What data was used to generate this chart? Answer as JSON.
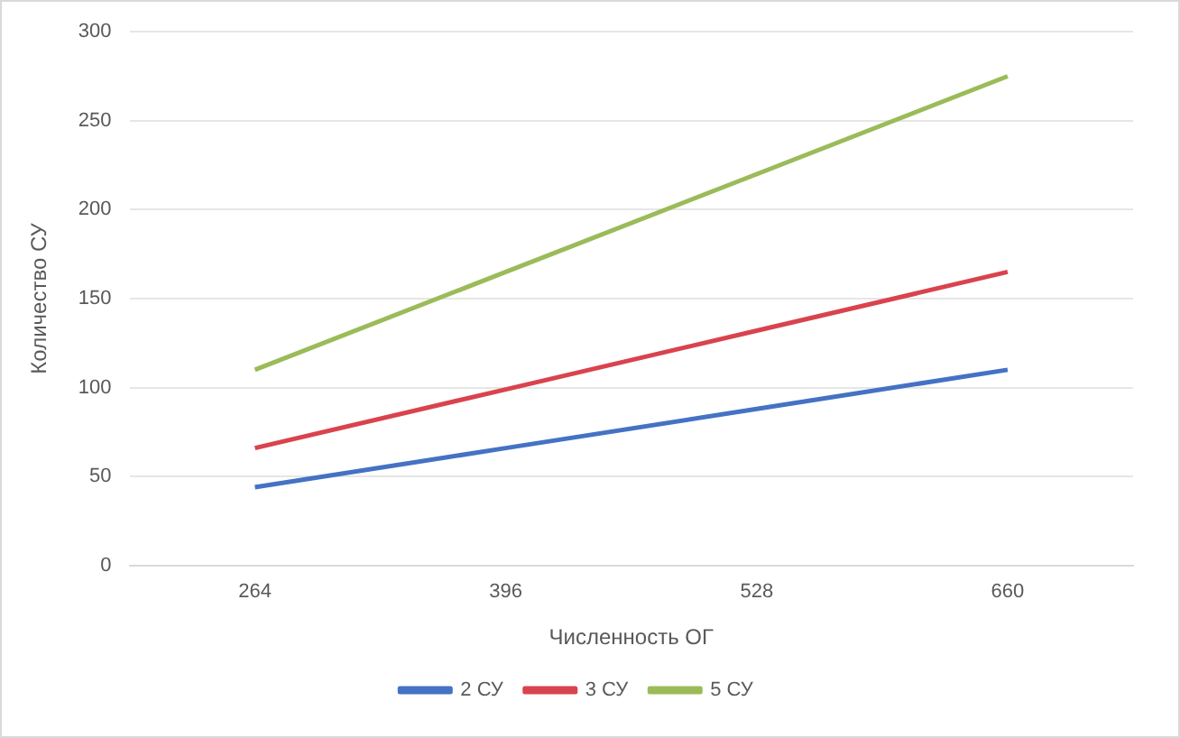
{
  "chart_data": {
    "type": "line",
    "xlabel": "Численность ОГ",
    "ylabel": "Количество СУ",
    "categories": [
      "264",
      "396",
      "528",
      "660"
    ],
    "series": [
      {
        "name": "2 СУ",
        "color": "#4472c4",
        "values": [
          44,
          66,
          88,
          110
        ]
      },
      {
        "name": "3 СУ",
        "color": "#d9434e",
        "values": [
          66,
          99,
          132,
          165
        ]
      },
      {
        "name": "5 СУ",
        "color": "#9bbb59",
        "values": [
          110,
          165,
          220,
          275
        ]
      }
    ],
    "ylim": [
      0,
      300
    ],
    "yticks": [
      0,
      50,
      100,
      150,
      200,
      250,
      300
    ],
    "grid": "y",
    "legend": "bottom",
    "marker": "none",
    "line_style": "solid"
  }
}
